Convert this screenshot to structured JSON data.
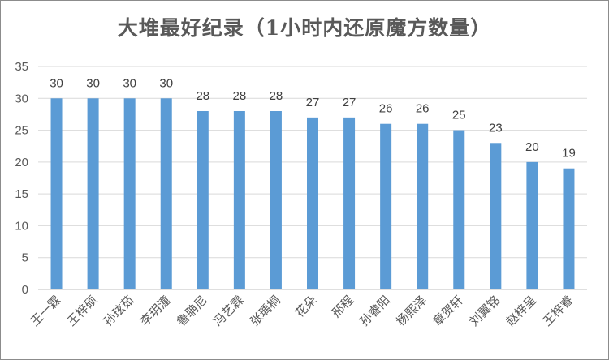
{
  "chart_data": {
    "type": "bar",
    "title": "大堆最好纪录（1小时内还原魔方数量）",
    "xlabel": "",
    "ylabel": "",
    "ylim": [
      0,
      35
    ],
    "yticks": [
      0,
      5,
      10,
      15,
      20,
      25,
      30,
      35
    ],
    "grid": true,
    "legend": "none",
    "bar_color": "#5b9bd5",
    "categories": [
      "王一霖",
      "王梓硕",
      "孙玹茹",
      "李玥潼",
      "鲁聃尼",
      "冯艺霖",
      "张瑀桐",
      "花朵",
      "邢程",
      "孙睿阳",
      "杨熙泽",
      "章贺轩",
      "刘翼铭",
      "赵梓呈",
      "王梓睿"
    ],
    "values": [
      30,
      30,
      30,
      30,
      28,
      28,
      28,
      27,
      27,
      26,
      26,
      25,
      23,
      20,
      19
    ]
  }
}
